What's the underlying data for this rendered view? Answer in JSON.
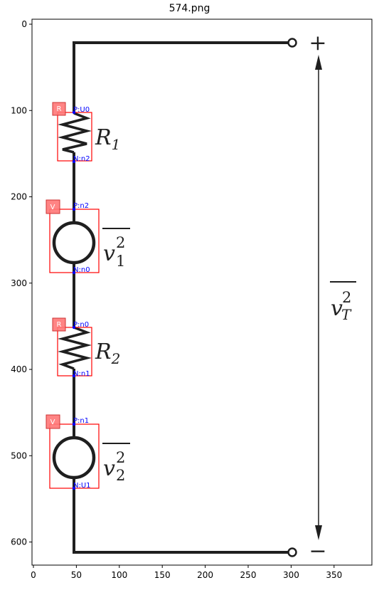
{
  "figure": {
    "title": "574.png"
  },
  "axes": {
    "x_ticks": [
      "0",
      "50",
      "100",
      "150",
      "200",
      "250",
      "300",
      "350"
    ],
    "y_ticks": [
      "0",
      "100",
      "200",
      "300",
      "400",
      "500",
      "600"
    ]
  },
  "circuit": {
    "labels": {
      "r1": {
        "base": "R",
        "sub": "1"
      },
      "r2": {
        "base": "R",
        "sub": "2"
      },
      "v1": {
        "base": "v",
        "sup": "2",
        "sub": "1"
      },
      "v2": {
        "base": "v",
        "sup": "2",
        "sub": "2"
      },
      "vt": {
        "base": "v",
        "sup": "2",
        "sub": "T"
      },
      "plus": "+",
      "minus": "−"
    }
  },
  "annotations": {
    "components": [
      {
        "type": "R",
        "p_label": "P:U0",
        "n_label": "N:n2"
      },
      {
        "type": "V",
        "p_label": "P:n2",
        "n_label": "N:n0"
      },
      {
        "type": "R",
        "p_label": "P:n0",
        "n_label": "N:n1"
      },
      {
        "type": "V",
        "p_label": "P:n1",
        "n_label": "N:U1"
      }
    ]
  },
  "colors": {
    "wire": "#1f1f1f",
    "bbox": "#ff0000",
    "badge": "#ff7777",
    "pin_label": "#0000ff"
  }
}
